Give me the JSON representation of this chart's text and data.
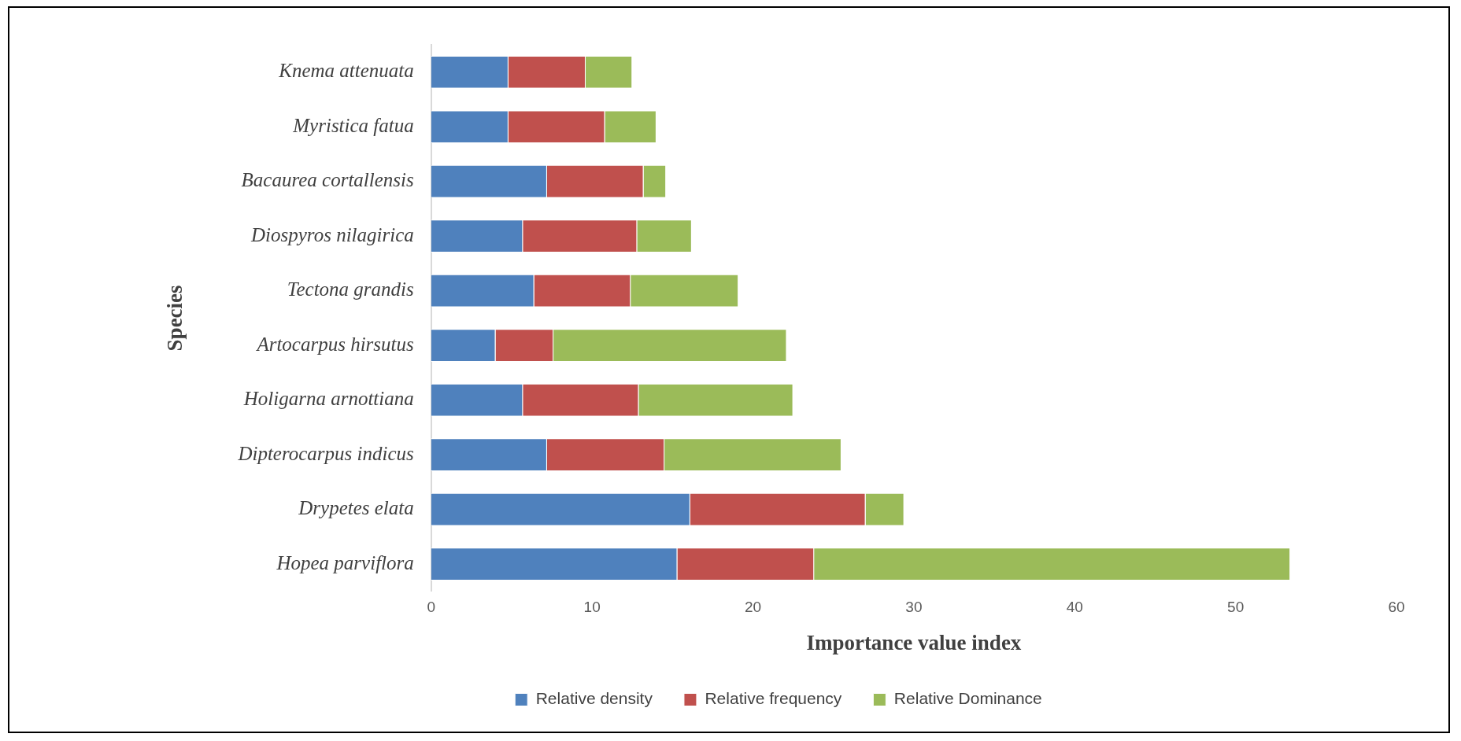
{
  "chart_data": {
    "type": "bar",
    "orientation": "horizontal",
    "stacked": true,
    "xlabel": "Importance value index",
    "ylabel": "Species",
    "categories": [
      "Knema attenuata",
      "Myristica fatua",
      "Bacaurea cortallensis",
      "Diospyros nilagirica",
      "Tectona grandis",
      "Artocarpus hirsutus",
      "Holigarna arnottiana",
      "Dipterocarpus indicus",
      "Drypetes elata",
      "Hopea parviflora"
    ],
    "series": [
      {
        "name": "Relative density",
        "color": "#4f81bd",
        "values": [
          4.8,
          4.8,
          7.2,
          5.7,
          6.4,
          4.0,
          5.7,
          7.2,
          16.1,
          15.3
        ]
      },
      {
        "name": "Relative frequency",
        "color": "#c0504d",
        "values": [
          4.8,
          6.0,
          6.0,
          7.1,
          6.0,
          3.6,
          7.2,
          7.3,
          10.9,
          8.5
        ]
      },
      {
        "name": "Relative Dominance",
        "color": "#9bbb59",
        "values": [
          2.9,
          3.2,
          1.4,
          3.4,
          6.7,
          14.5,
          9.6,
          11.0,
          2.4,
          29.6
        ]
      }
    ],
    "xlim": [
      0,
      60
    ],
    "xticks": [
      0,
      10,
      20,
      30,
      40,
      50,
      60
    ],
    "grid": false,
    "legend": "bottom"
  }
}
